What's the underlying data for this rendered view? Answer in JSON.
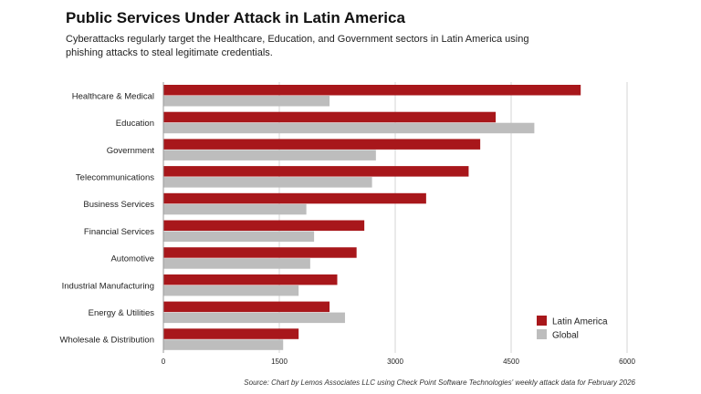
{
  "title": "Public Services Under Attack in Latin America",
  "subtitle": "Cyberattacks regularly target the Healthcare, Education, and Government sectors in Latin America using phishing attacks to steal legitimate credentials.",
  "source": "Source: Chart by Lemos Associates LLC using Check Point Software Technologies' weekly attack data for February 2026",
  "colors": {
    "latin_america": "#a8171b",
    "global": "#bdbdbd",
    "grid": "#d4d4d4",
    "axis": "#9a9a9a"
  },
  "chart_data": {
    "type": "bar",
    "orientation": "horizontal",
    "categories": [
      "Healthcare & Medical",
      "Education",
      "Government",
      "Telecommunications",
      "Business Services",
      "Financial Services",
      "Automotive",
      "Industrial Manufacturing",
      "Energy & Utilities",
      "Wholesale & Distribution"
    ],
    "series": [
      {
        "name": "Latin America",
        "color": "#a8171b",
        "values": [
          5400,
          4300,
          4100,
          3950,
          3400,
          2600,
          2500,
          2250,
          2150,
          1750
        ]
      },
      {
        "name": "Global",
        "color": "#bdbdbd",
        "values": [
          2150,
          4800,
          2750,
          2700,
          1850,
          1950,
          1900,
          1750,
          2350,
          1550
        ]
      }
    ],
    "xlim": [
      0,
      6000
    ],
    "xticks": [
      "0",
      "1500",
      "3000",
      "4500",
      "6000"
    ],
    "xtick_values": [
      0,
      1500,
      3000,
      4500,
      6000
    ],
    "grid": "vertical",
    "legend_position": "bottom-right"
  }
}
